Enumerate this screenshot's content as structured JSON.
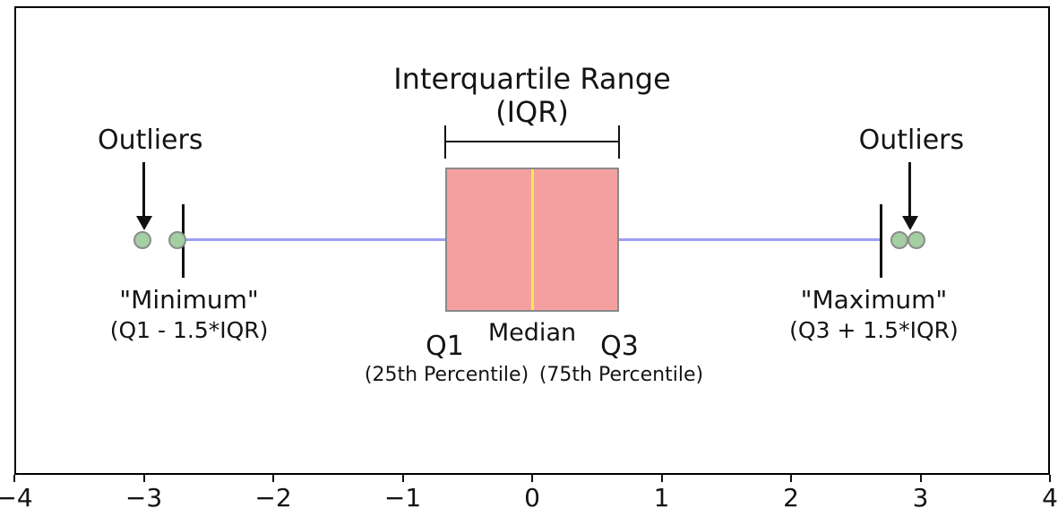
{
  "figure": {
    "background": "#ffffff",
    "frame_color": "#000000",
    "text_color": "#141414"
  },
  "chart_data": {
    "type": "boxplot",
    "orientation": "horizontal",
    "title": "Interquartile Range",
    "title_line2": "(IQR)",
    "x_axis": {
      "min": -4,
      "max": 4,
      "tick_values": [
        -4,
        -3,
        -2,
        -1,
        0,
        1,
        2,
        3,
        4
      ],
      "tick_labels": [
        "−4",
        "−3",
        "−2",
        "−1",
        "0",
        "1",
        "2",
        "3",
        "4"
      ],
      "grid": false
    },
    "box": {
      "q1": -0.6745,
      "median": 0,
      "q3": 0.6745,
      "fill": "#f4a0a0",
      "border": "#8a8a8a",
      "median_color": "#ffe94f"
    },
    "whiskers": {
      "lower": -2.698,
      "upper": 2.698,
      "line_color": "#9e9ef2",
      "cap_color": "#111111"
    },
    "outliers": {
      "values": [
        -3.01,
        -2.74,
        2.84,
        2.97
      ],
      "fill": "#a3cfa2",
      "border": "#8b8b8b"
    },
    "annotations": {
      "outliers_left": {
        "label": "Outliers",
        "label_x": -2.95,
        "arrow_x": -3.0
      },
      "outliers_right": {
        "label": "Outliers",
        "label_x": 2.93,
        "arrow_x": 2.92
      },
      "minimum": {
        "label": "\"Minimum\"",
        "formula": "(Q1 - 1.5*IQR)",
        "x": -2.65
      },
      "maximum": {
        "label": "\"Maximum\"",
        "formula": "(Q3 + 1.5*IQR)",
        "x": 2.64
      },
      "q1": {
        "label": "Q1",
        "sub": "(25th Percentile)"
      },
      "median": {
        "label": "Median"
      },
      "q3": {
        "label": "Q3",
        "sub": "(75th Percentile)"
      }
    }
  }
}
